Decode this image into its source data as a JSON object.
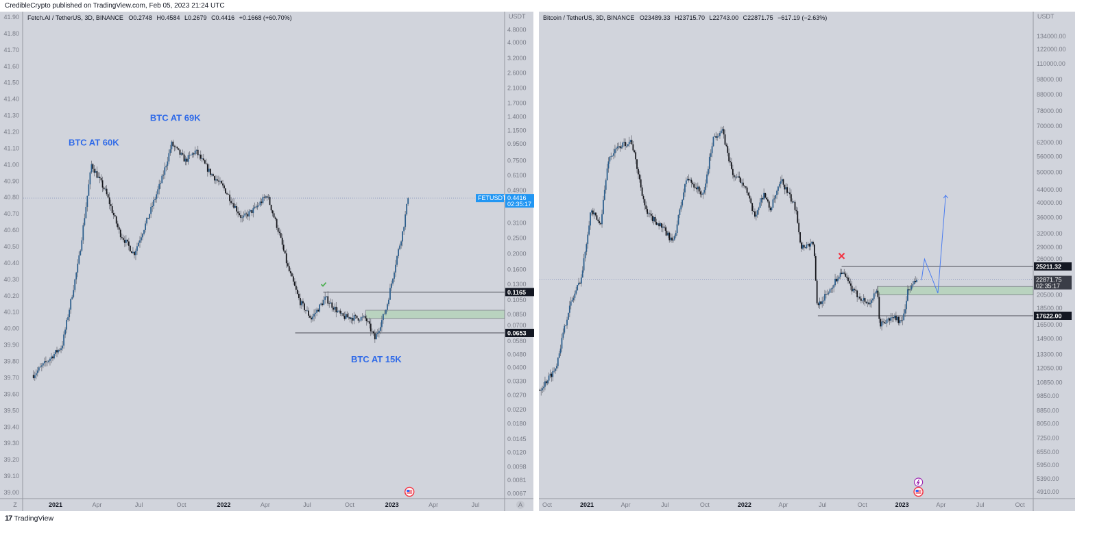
{
  "header": {
    "publisher": "CredibleCrypto published on TradingView.com, Feb 05, 2023 21:24 UTC"
  },
  "footer": {
    "logo_mark": "17",
    "logo_text": "TradingView"
  },
  "left_panel": {
    "legend": {
      "symbol": "Fetch.AI / TetherUS, 3D, BINANCE",
      "open": "O0.2748",
      "high": "H0.4584",
      "low": "L0.2679",
      "close": "C0.4416",
      "change": "+0.1668 (+60.70%)"
    },
    "currency": "USDT",
    "outer_axis_labels": [
      "41.90",
      "41.80",
      "41.70",
      "41.60",
      "41.50",
      "41.40",
      "41.30",
      "41.20",
      "41.10",
      "41.00",
      "40.90",
      "40.80",
      "40.70",
      "40.60",
      "40.50",
      "40.40",
      "40.30",
      "40.20",
      "40.10",
      "40.00",
      "39.90",
      "39.80",
      "39.70",
      "39.60",
      "39.50",
      "39.40",
      "39.30",
      "39.20",
      "39.10",
      "39.00"
    ],
    "corner_left": "Z",
    "corner_right": "A",
    "symbol_tag": "FETUSDT",
    "price_tag": "0.4416",
    "countdown": "02:35:17",
    "level_tags": [
      "0.1165",
      "0.0653"
    ],
    "annotations": [
      "BTC AT 60K",
      "BTC AT 69K",
      "BTC AT 15K"
    ],
    "icons": [
      "check-icon",
      "us-flag-event-icon"
    ]
  },
  "right_panel": {
    "legend": {
      "symbol": "Bitcoin / TetherUS, 3D, BINANCE",
      "open": "O23489.33",
      "high": "H23715.70",
      "low": "L22743.00",
      "close": "C22871.75",
      "change": "−617.19 (−2.63%)"
    },
    "currency": "USDT",
    "price_tag": "22871.75",
    "countdown": "02:35:17",
    "level_tags": [
      "25211.32",
      "17622.00"
    ],
    "icons": [
      "cross-icon",
      "lightning-event-icon",
      "us-flag-event-icon"
    ]
  },
  "colors": {
    "chart_bg": "#d1d4dc",
    "annotation": "#2f6ae8",
    "zone": "#b9d3bf",
    "tag_blue": "#2196f3",
    "check": "#4caf50",
    "cross": "#f23645",
    "projection": "#4a7cf0"
  },
  "chart_data": [
    {
      "type": "candlestick",
      "title": "Fetch.AI / TetherUS, 3D, BINANCE",
      "scale": "log",
      "interval": "3D",
      "ylabel": "USDT",
      "y_ticks": [
        "4.8000",
        "4.0000",
        "3.2000",
        "2.6000",
        "2.1000",
        "1.7000",
        "1.4000",
        "1.1500",
        "0.9500",
        "0.7500",
        "0.6100",
        "0.4900",
        "0.3100",
        "0.2500",
        "0.2000",
        "0.1600",
        "0.1300",
        "0.1050",
        "0.0850",
        "0.0700",
        "0.0580",
        "0.0480",
        "0.0400",
        "0.0330",
        "0.0270",
        "0.0220",
        "0.0180",
        "0.0145",
        "0.0120",
        "0.0098",
        "0.0081",
        "0.0067"
      ],
      "x_ticks": [
        {
          "label": "2021",
          "date": "2021-01-01",
          "major": true
        },
        {
          "label": "Apr",
          "date": "2021-04-01"
        },
        {
          "label": "Jul",
          "date": "2021-07-01"
        },
        {
          "label": "Oct",
          "date": "2021-10-01"
        },
        {
          "label": "2022",
          "date": "2022-01-01",
          "major": true
        },
        {
          "label": "Apr",
          "date": "2022-04-01"
        },
        {
          "label": "Jul",
          "date": "2022-07-01"
        },
        {
          "label": "Oct",
          "date": "2022-10-01"
        },
        {
          "label": "2023",
          "date": "2023-01-01",
          "major": true
        },
        {
          "label": "Apr",
          "date": "2023-04-01"
        },
        {
          "label": "Jul",
          "date": "2023-07-01"
        }
      ],
      "price_path": [
        [
          "2020-11-14",
          0.036
        ],
        [
          "2021-01-15",
          0.054
        ],
        [
          "2021-02-20",
          0.18
        ],
        [
          "2021-03-20",
          0.71
        ],
        [
          "2021-04-20",
          0.48
        ],
        [
          "2021-05-20",
          0.27
        ],
        [
          "2021-06-20",
          0.2
        ],
        [
          "2021-07-20",
          0.33
        ],
        [
          "2021-08-20",
          0.58
        ],
        [
          "2021-09-10",
          0.95
        ],
        [
          "2021-10-10",
          0.75
        ],
        [
          "2021-11-01",
          0.86
        ],
        [
          "2021-12-01",
          0.64
        ],
        [
          "2022-01-01",
          0.51
        ],
        [
          "2022-02-10",
          0.33
        ],
        [
          "2022-03-10",
          0.38
        ],
        [
          "2022-04-05",
          0.46
        ],
        [
          "2022-05-01",
          0.27
        ],
        [
          "2022-05-20",
          0.165
        ],
        [
          "2022-06-15",
          0.102
        ],
        [
          "2022-07-10",
          0.08
        ],
        [
          "2022-08-10",
          0.107
        ],
        [
          "2022-09-15",
          0.082
        ],
        [
          "2022-11-05",
          0.08
        ],
        [
          "2022-11-25",
          0.06
        ],
        [
          "2022-12-20",
          0.093
        ],
        [
          "2023-01-10",
          0.182
        ],
        [
          "2023-01-25",
          0.28
        ],
        [
          "2023-02-05",
          0.4416
        ]
      ],
      "last_price": 0.4416,
      "levels": [
        {
          "price": 0.1165,
          "from": "2022-08-05"
        },
        {
          "price": 0.0653,
          "from": "2022-06-05"
        }
      ],
      "zone": {
        "low": 0.08,
        "high": 0.09,
        "from": "2022-11-05"
      },
      "annotations": [
        {
          "text_index": 0,
          "date": "2021-03-25",
          "price": 0.93
        },
        {
          "text_index": 1,
          "date": "2021-09-18",
          "price": 1.32
        },
        {
          "text_index": 2,
          "date": "2022-11-28",
          "price": 0.043
        }
      ],
      "check_mark": {
        "date": "2022-08-05",
        "price": 0.13
      },
      "event_date": "2023-02-08"
    },
    {
      "type": "candlestick",
      "title": "Bitcoin / TetherUS, 3D, BINANCE",
      "scale": "log",
      "interval": "3D",
      "ylabel": "USDT",
      "y_ticks": [
        "134000.00",
        "122000.00",
        "110000.00",
        "98000.00",
        "88000.00",
        "78000.00",
        "70000.00",
        "62000.00",
        "56000.00",
        "50000.00",
        "44000.00",
        "40000.00",
        "36000.00",
        "32000.00",
        "29000.00",
        "26000.00",
        "20500.00",
        "18500.00",
        "16500.00",
        "14900.00",
        "13300.00",
        "12050.00",
        "10850.00",
        "9850.00",
        "8850.00",
        "8050.00",
        "7250.00",
        "6550.00",
        "5950.00",
        "5390.00",
        "4910.00"
      ],
      "x_ticks": [
        {
          "label": "Oct",
          "date": "2020-10-01"
        },
        {
          "label": "2021",
          "date": "2021-01-01",
          "major": true
        },
        {
          "label": "Apr",
          "date": "2021-04-01"
        },
        {
          "label": "Jul",
          "date": "2021-07-01"
        },
        {
          "label": "Oct",
          "date": "2021-10-01"
        },
        {
          "label": "2022",
          "date": "2022-01-01",
          "major": true
        },
        {
          "label": "Apr",
          "date": "2022-04-01"
        },
        {
          "label": "Jul",
          "date": "2022-07-01"
        },
        {
          "label": "Oct",
          "date": "2022-10-01"
        },
        {
          "label": "2023",
          "date": "2023-01-01",
          "major": true
        },
        {
          "label": "Apr",
          "date": "2023-04-01"
        },
        {
          "label": "Jul",
          "date": "2023-07-01"
        },
        {
          "label": "Oct",
          "date": "2023-10-01"
        }
      ],
      "price_path": [
        [
          "2020-09-14",
          10300
        ],
        [
          "2020-10-20",
          12000
        ],
        [
          "2020-11-20",
          18500
        ],
        [
          "2020-12-20",
          23500
        ],
        [
          "2021-01-10",
          38000
        ],
        [
          "2021-02-01",
          34000
        ],
        [
          "2021-02-20",
          55000
        ],
        [
          "2021-03-15",
          60000
        ],
        [
          "2021-04-14",
          63000
        ],
        [
          "2021-05-19",
          37000
        ],
        [
          "2021-06-20",
          34000
        ],
        [
          "2021-07-20",
          30000
        ],
        [
          "2021-08-20",
          48000
        ],
        [
          "2021-09-10",
          45000
        ],
        [
          "2021-09-28",
          42000
        ],
        [
          "2021-10-20",
          64000
        ],
        [
          "2021-11-10",
          68000
        ],
        [
          "2021-12-05",
          49000
        ],
        [
          "2022-01-01",
          46000
        ],
        [
          "2022-01-24",
          36000
        ],
        [
          "2022-02-15",
          43000
        ],
        [
          "2022-03-01",
          38000
        ],
        [
          "2022-03-28",
          47000
        ],
        [
          "2022-05-01",
          38000
        ],
        [
          "2022-05-12",
          29000
        ],
        [
          "2022-06-10",
          30000
        ],
        [
          "2022-06-18",
          19000
        ],
        [
          "2022-07-10",
          20500
        ],
        [
          "2022-08-14",
          24400
        ],
        [
          "2022-09-10",
          21000
        ],
        [
          "2022-10-15",
          19200
        ],
        [
          "2022-11-05",
          21000
        ],
        [
          "2022-11-10",
          16500
        ],
        [
          "2022-12-15",
          17500
        ],
        [
          "2023-01-01",
          16600
        ],
        [
          "2023-01-14",
          21000
        ],
        [
          "2023-02-05",
          22871.75
        ]
      ],
      "last_price": 22871.75,
      "levels": [
        {
          "price": 25211.32,
          "from": "2022-08-14"
        },
        {
          "price": 17622,
          "from": "2022-06-20"
        }
      ],
      "zone": {
        "low": 20500,
        "high": 21800,
        "from": "2022-11-05"
      },
      "projection": [
        [
          "2023-02-15",
          22800
        ],
        [
          "2023-02-22",
          26600
        ],
        [
          "2023-03-25",
          20760
        ],
        [
          "2023-04-12",
          42270
        ]
      ],
      "cross_mark": {
        "date": "2022-08-14",
        "price": 27200
      },
      "event_date": "2023-02-08"
    }
  ]
}
